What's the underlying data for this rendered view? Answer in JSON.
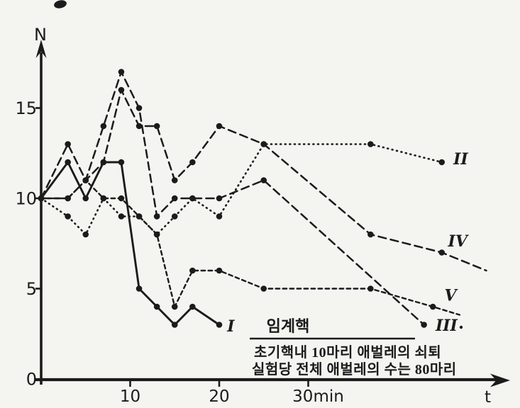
{
  "figure": {
    "background": "#f4f4f1",
    "ink": "#1b1b1b",
    "y_axis_label": "N",
    "x_axis_label": "t"
  },
  "chart_data": {
    "type": "line",
    "xlabel": "t",
    "ylabel": "N",
    "x_unit": "min",
    "xlim": [
      0,
      52
    ],
    "ylim": [
      0,
      19
    ],
    "grid": false,
    "x_ticks": [
      {
        "value": 10,
        "label": "10"
      },
      {
        "value": 20,
        "label": "20"
      },
      {
        "value": 30,
        "label": "30min"
      }
    ],
    "y_ticks": [
      {
        "value": 0,
        "label": "0"
      },
      {
        "value": 5,
        "label": "5"
      },
      {
        "value": 10,
        "label": "10"
      },
      {
        "value": 15,
        "label": "15"
      }
    ],
    "series": [
      {
        "name": "I",
        "style": "solid",
        "label_at": [
          20.9,
          2.9
        ],
        "points": [
          [
            0,
            10
          ],
          [
            3,
            12
          ],
          [
            5,
            10
          ],
          [
            7,
            12
          ],
          [
            9,
            12
          ],
          [
            11,
            5
          ],
          [
            13,
            4
          ],
          [
            15,
            3
          ],
          [
            17,
            4
          ],
          [
            20,
            3
          ]
        ]
      },
      {
        "name": "II",
        "style": "dotted",
        "label_at": [
          46.3,
          12.15
        ],
        "points": [
          [
            0,
            10
          ],
          [
            3,
            9
          ],
          [
            5,
            8
          ],
          [
            7,
            10
          ],
          [
            9,
            9
          ],
          [
            11,
            9
          ],
          [
            13,
            8
          ],
          [
            15,
            9
          ],
          [
            17,
            10
          ],
          [
            20,
            9
          ],
          [
            25,
            13
          ],
          [
            37,
            13
          ],
          [
            45,
            12
          ]
        ]
      },
      {
        "name": "III",
        "style": "long-dash",
        "label_at": [
          44.3,
          2.95
        ],
        "points": [
          [
            0,
            10
          ],
          [
            3,
            13
          ],
          [
            5,
            11
          ],
          [
            7,
            14
          ],
          [
            9,
            17
          ],
          [
            11,
            15
          ],
          [
            13,
            9
          ],
          [
            15,
            10
          ],
          [
            17,
            10
          ],
          [
            20,
            10
          ],
          [
            25,
            11
          ],
          [
            43,
            3
          ]
        ]
      },
      {
        "name": "IV",
        "style": "long-dash",
        "label_at": [
          45.7,
          7.6
        ],
        "points": [
          [
            0,
            10
          ],
          [
            3,
            10
          ],
          [
            5,
            11
          ],
          [
            7,
            12
          ],
          [
            9,
            16
          ],
          [
            11,
            14
          ],
          [
            13,
            14
          ],
          [
            15,
            11
          ],
          [
            17,
            12
          ],
          [
            20,
            14
          ],
          [
            25,
            13
          ],
          [
            37,
            8
          ],
          [
            45,
            7
          ],
          [
            50,
            6,
            0
          ]
        ]
      },
      {
        "name": "V",
        "style": "short-dash",
        "label_at": [
          45.3,
          4.6
        ],
        "points": [
          [
            0,
            10
          ],
          [
            3,
            10
          ],
          [
            5,
            11
          ],
          [
            7,
            10
          ],
          [
            9,
            10
          ],
          [
            11,
            9
          ],
          [
            13,
            8
          ],
          [
            15,
            4
          ],
          [
            17,
            6
          ],
          [
            20,
            6
          ],
          [
            25,
            5
          ],
          [
            37,
            5
          ],
          [
            44,
            4
          ],
          [
            47,
            3.55,
            0
          ]
        ]
      }
    ],
    "annotations": {
      "critical_label": "임계핵",
      "caption_line1": "초기핵내 10마리 애벌레의 쇠퇴",
      "caption_line2": "실험당 전체 애벌레의 수는 80마리"
    }
  }
}
